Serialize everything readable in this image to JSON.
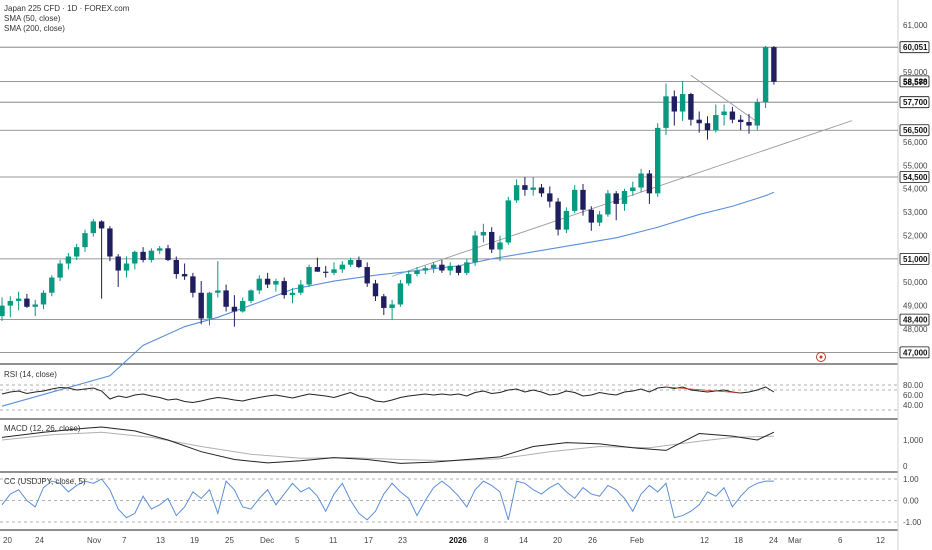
{
  "header": {
    "title": "Japan 225 CFD · 1D · FOREX.com",
    "sma50": "SMA (50, close)",
    "sma200": "SMA (200, close)"
  },
  "panels": {
    "rsi_label": "RSI (14, close)",
    "macd_label": "MACD (12, 26, close)",
    "cc_label": "CC (USDJPY, close, 5)"
  },
  "colors": {
    "up": "#089981",
    "down": "#1f1e5e",
    "sma": "#5b8fd9",
    "trend": "#9a9a9a",
    "level": "#777777",
    "cc": "#5b8fd9",
    "macd_signal": "#b0b0b0"
  },
  "chart_data": [
    {
      "type": "candlestick",
      "price_ticks": [
        61000,
        60000,
        59000,
        58000,
        57000,
        56000,
        55000,
        54000,
        53000,
        52000,
        51000,
        50000,
        49000,
        48000
      ],
      "price_tick_labels": [
        "61,000",
        "",
        "59,000",
        "",
        "",
        "56,000",
        "55,000",
        "54,000",
        "53,000",
        "52,000",
        "",
        "50,000",
        "49,000",
        "48,000"
      ],
      "level_tags": [
        {
          "label": "60,051",
          "value": 60051,
          "style": "dark"
        },
        {
          "label": "58,588",
          "value": 58588,
          "style": "dark"
        },
        {
          "label": "58,570",
          "value": 58570,
          "style": "plain"
        },
        {
          "label": "57,700",
          "value": 57700,
          "style": "dark"
        },
        {
          "label": "56,500",
          "value": 56500,
          "style": "dark"
        },
        {
          "label": "54,500",
          "value": 54500,
          "style": "dark"
        },
        {
          "label": "51,000",
          "value": 51000,
          "style": "dark"
        },
        {
          "label": "48,400",
          "value": 48400,
          "style": "dark"
        },
        {
          "label": "47,000",
          "value": 47000,
          "style": "dark"
        }
      ],
      "horizontal_levels": [
        60051,
        58588,
        57700,
        56500,
        54500,
        51000,
        48400,
        47000
      ],
      "x_axis_labels": [
        "20",
        "24",
        "Nov",
        "7",
        "13",
        "19",
        "25",
        "Dec",
        "5",
        "11",
        "17",
        "23",
        "2026",
        "8",
        "14",
        "20",
        "26",
        "Feb",
        "12",
        "18",
        "24",
        "Mar",
        "6",
        "12"
      ],
      "candles": [
        {
          "o": 48550,
          "h": 49350,
          "l": 48350,
          "c": 49000
        },
        {
          "o": 49000,
          "h": 49400,
          "l": 48500,
          "c": 49200
        },
        {
          "o": 49200,
          "h": 49600,
          "l": 48800,
          "c": 49300
        },
        {
          "o": 49300,
          "h": 49500,
          "l": 48900,
          "c": 48950
        },
        {
          "o": 48950,
          "h": 49250,
          "l": 48550,
          "c": 49050
        },
        {
          "o": 49050,
          "h": 49650,
          "l": 48850,
          "c": 49550
        },
        {
          "o": 49550,
          "h": 50300,
          "l": 49400,
          "c": 50200
        },
        {
          "o": 50200,
          "h": 50950,
          "l": 50050,
          "c": 50800
        },
        {
          "o": 50800,
          "h": 51250,
          "l": 50550,
          "c": 51100
        },
        {
          "o": 51100,
          "h": 51650,
          "l": 50950,
          "c": 51500
        },
        {
          "o": 51500,
          "h": 52250,
          "l": 51300,
          "c": 52100
        },
        {
          "o": 52100,
          "h": 52700,
          "l": 51950,
          "c": 52600
        },
        {
          "o": 52600,
          "h": 52650,
          "l": 49300,
          "c": 52300
        },
        {
          "o": 52300,
          "h": 52400,
          "l": 50900,
          "c": 51100
        },
        {
          "o": 51100,
          "h": 51200,
          "l": 49800,
          "c": 50500
        },
        {
          "o": 50500,
          "h": 51100,
          "l": 50200,
          "c": 50800
        },
        {
          "o": 50800,
          "h": 51350,
          "l": 50550,
          "c": 51300
        },
        {
          "o": 51300,
          "h": 51500,
          "l": 50850,
          "c": 50950
        },
        {
          "o": 50950,
          "h": 51450,
          "l": 50850,
          "c": 51350
        },
        {
          "o": 51350,
          "h": 51550,
          "l": 51200,
          "c": 51450
        },
        {
          "o": 51450,
          "h": 51600,
          "l": 50900,
          "c": 50950
        },
        {
          "o": 50950,
          "h": 51100,
          "l": 50150,
          "c": 50350
        },
        {
          "o": 50350,
          "h": 50800,
          "l": 50100,
          "c": 50250
        },
        {
          "o": 50250,
          "h": 50400,
          "l": 49350,
          "c": 49550
        },
        {
          "o": 49550,
          "h": 50050,
          "l": 48200,
          "c": 48450
        },
        {
          "o": 48450,
          "h": 49600,
          "l": 48150,
          "c": 49550
        },
        {
          "o": 49550,
          "h": 50900,
          "l": 49350,
          "c": 49650
        },
        {
          "o": 49650,
          "h": 49900,
          "l": 48750,
          "c": 48950
        },
        {
          "o": 48950,
          "h": 49450,
          "l": 48100,
          "c": 48750
        },
        {
          "o": 48750,
          "h": 49350,
          "l": 48700,
          "c": 49200
        },
        {
          "o": 49200,
          "h": 49700,
          "l": 49100,
          "c": 49650
        },
        {
          "o": 49650,
          "h": 50300,
          "l": 49500,
          "c": 50150
        },
        {
          "o": 50150,
          "h": 50400,
          "l": 49750,
          "c": 49900
        },
        {
          "o": 49900,
          "h": 50150,
          "l": 49600,
          "c": 50050
        },
        {
          "o": 50050,
          "h": 50200,
          "l": 49300,
          "c": 49450
        },
        {
          "o": 49450,
          "h": 49750,
          "l": 49100,
          "c": 49550
        },
        {
          "o": 49550,
          "h": 50100,
          "l": 49450,
          "c": 49900
        },
        {
          "o": 49900,
          "h": 50750,
          "l": 49800,
          "c": 50650
        },
        {
          "o": 50650,
          "h": 51050,
          "l": 50450,
          "c": 50450
        },
        {
          "o": 50450,
          "h": 50700,
          "l": 50200,
          "c": 50400
        },
        {
          "o": 50400,
          "h": 50850,
          "l": 50300,
          "c": 50550
        },
        {
          "o": 50550,
          "h": 50900,
          "l": 50400,
          "c": 50750
        },
        {
          "o": 50750,
          "h": 51050,
          "l": 50650,
          "c": 50950
        },
        {
          "o": 50950,
          "h": 51100,
          "l": 50600,
          "c": 50650
        },
        {
          "o": 50650,
          "h": 50850,
          "l": 49800,
          "c": 49950
        },
        {
          "o": 49950,
          "h": 50100,
          "l": 49200,
          "c": 49400
        },
        {
          "o": 49400,
          "h": 49500,
          "l": 48600,
          "c": 48900
        },
        {
          "o": 48900,
          "h": 49250,
          "l": 48400,
          "c": 49050
        },
        {
          "o": 49050,
          "h": 50100,
          "l": 48950,
          "c": 49950
        },
        {
          "o": 49950,
          "h": 50500,
          "l": 49850,
          "c": 50350
        },
        {
          "o": 50350,
          "h": 50650,
          "l": 50250,
          "c": 50500
        },
        {
          "o": 50500,
          "h": 50700,
          "l": 50350,
          "c": 50600
        },
        {
          "o": 50600,
          "h": 50850,
          "l": 50400,
          "c": 50750
        },
        {
          "o": 50750,
          "h": 50950,
          "l": 50400,
          "c": 50500
        },
        {
          "o": 50500,
          "h": 50850,
          "l": 50300,
          "c": 50700
        },
        {
          "o": 50700,
          "h": 50750,
          "l": 50300,
          "c": 50400
        },
        {
          "o": 50400,
          "h": 51000,
          "l": 50300,
          "c": 50850
        },
        {
          "o": 50850,
          "h": 52200,
          "l": 50700,
          "c": 52000
        },
        {
          "o": 52000,
          "h": 52500,
          "l": 51700,
          "c": 52150
        },
        {
          "o": 52150,
          "h": 52350,
          "l": 51250,
          "c": 51400
        },
        {
          "o": 51400,
          "h": 52000,
          "l": 50900,
          "c": 51700
        },
        {
          "o": 51700,
          "h": 53650,
          "l": 51600,
          "c": 53500
        },
        {
          "o": 53500,
          "h": 54400,
          "l": 53400,
          "c": 54150
        },
        {
          "o": 54150,
          "h": 54500,
          "l": 53700,
          "c": 53950
        },
        {
          "o": 53950,
          "h": 54500,
          "l": 53700,
          "c": 54050
        },
        {
          "o": 54050,
          "h": 54200,
          "l": 53650,
          "c": 53800
        },
        {
          "o": 53800,
          "h": 54100,
          "l": 53200,
          "c": 53450
        },
        {
          "o": 53450,
          "h": 53600,
          "l": 52000,
          "c": 52250
        },
        {
          "o": 52250,
          "h": 53200,
          "l": 52100,
          "c": 53050
        },
        {
          "o": 53050,
          "h": 54150,
          "l": 52950,
          "c": 53950
        },
        {
          "o": 53950,
          "h": 54200,
          "l": 52850,
          "c": 53100
        },
        {
          "o": 53100,
          "h": 53250,
          "l": 52200,
          "c": 52550
        },
        {
          "o": 52550,
          "h": 53050,
          "l": 52400,
          "c": 52900
        },
        {
          "o": 52900,
          "h": 53950,
          "l": 52800,
          "c": 53800
        },
        {
          "o": 53800,
          "h": 53900,
          "l": 52650,
          "c": 53350
        },
        {
          "o": 53350,
          "h": 54000,
          "l": 53050,
          "c": 53900
        },
        {
          "o": 53900,
          "h": 54300,
          "l": 53700,
          "c": 54050
        },
        {
          "o": 54050,
          "h": 54850,
          "l": 53850,
          "c": 54650
        },
        {
          "o": 54650,
          "h": 54800,
          "l": 53350,
          "c": 53800
        },
        {
          "o": 53800,
          "h": 56800,
          "l": 53650,
          "c": 56600
        },
        {
          "o": 56600,
          "h": 58500,
          "l": 56300,
          "c": 57950
        },
        {
          "o": 57950,
          "h": 58200,
          "l": 56700,
          "c": 57300
        },
        {
          "o": 57300,
          "h": 58600,
          "l": 56900,
          "c": 58050
        },
        {
          "o": 58050,
          "h": 58100,
          "l": 56700,
          "c": 56950
        },
        {
          "o": 56950,
          "h": 57300,
          "l": 56400,
          "c": 56800
        },
        {
          "o": 56800,
          "h": 57100,
          "l": 56100,
          "c": 56500
        },
        {
          "o": 56500,
          "h": 57600,
          "l": 56400,
          "c": 57150
        },
        {
          "o": 57150,
          "h": 57600,
          "l": 56700,
          "c": 57300
        },
        {
          "o": 57300,
          "h": 57500,
          "l": 56800,
          "c": 56950
        },
        {
          "o": 56950,
          "h": 57150,
          "l": 56500,
          "c": 56850
        },
        {
          "o": 56850,
          "h": 57200,
          "l": 56350,
          "c": 56700
        },
        {
          "o": 56700,
          "h": 57850,
          "l": 56500,
          "c": 57700
        },
        {
          "o": 57700,
          "h": 60100,
          "l": 57450,
          "c": 60050
        },
        {
          "o": 60051,
          "h": 60100,
          "l": 58450,
          "c": 58570
        }
      ],
      "sma50": [
        [
          0,
          44700
        ],
        [
          13,
          46000
        ],
        [
          17,
          47300
        ],
        [
          22,
          48100
        ],
        [
          26,
          48500
        ],
        [
          31,
          49150
        ],
        [
          35,
          49700
        ],
        [
          40,
          50050
        ],
        [
          45,
          50300
        ],
        [
          50,
          50500
        ],
        [
          55,
          50700
        ],
        [
          59,
          51000
        ],
        [
          64,
          51300
        ],
        [
          69,
          51600
        ],
        [
          74,
          51900
        ],
        [
          79,
          52350
        ],
        [
          84,
          52900
        ],
        [
          88,
          53250
        ],
        [
          92,
          53700
        ],
        [
          93,
          53850
        ]
      ],
      "trendlines": [
        [
          [
            47,
            50250
          ],
          [
            97,
            55200
          ]
        ],
        [
          [
            83,
            58850
          ],
          [
            91,
            56850
          ]
        ]
      ]
    },
    {
      "type": "line",
      "name": "RSI",
      "y_ticks": [
        80,
        60,
        40
      ],
      "y_tick_labels": [
        "80.00",
        "60.00",
        "40.00"
      ],
      "values": [
        62,
        66,
        68,
        63,
        66,
        68,
        72,
        75,
        74,
        70,
        72,
        74,
        68,
        52,
        58,
        55,
        60,
        62,
        58,
        55,
        50,
        52,
        47,
        45,
        48,
        52,
        55,
        53,
        50,
        48,
        52,
        55,
        58,
        60,
        57,
        54,
        58,
        62,
        60,
        58,
        55,
        60,
        65,
        58,
        55,
        48,
        46,
        50,
        55,
        58,
        60,
        62,
        60,
        62,
        60,
        62,
        58,
        65,
        68,
        63,
        65,
        70,
        72,
        66,
        70,
        66,
        60,
        62,
        68,
        65,
        58,
        60,
        65,
        62,
        60,
        66,
        68,
        72,
        66,
        74,
        76,
        73,
        76,
        70,
        68,
        66,
        68,
        70,
        66,
        64,
        66,
        70,
        76,
        66
      ]
    },
    {
      "type": "line",
      "name": "MACD",
      "y_ticks": [
        1000,
        0
      ],
      "y_tick_labels": [
        "1,000",
        "0"
      ],
      "macd": [
        [
          0,
          1100
        ],
        [
          5,
          1300
        ],
        [
          10,
          1450
        ],
        [
          12,
          1500
        ],
        [
          16,
          1350
        ],
        [
          20,
          1000
        ],
        [
          24,
          550
        ],
        [
          28,
          250
        ],
        [
          32,
          120
        ],
        [
          36,
          200
        ],
        [
          40,
          320
        ],
        [
          44,
          250
        ],
        [
          48,
          100
        ],
        [
          52,
          150
        ],
        [
          56,
          250
        ],
        [
          60,
          350
        ],
        [
          64,
          750
        ],
        [
          68,
          900
        ],
        [
          72,
          850
        ],
        [
          76,
          700
        ],
        [
          80,
          600
        ],
        [
          84,
          1250
        ],
        [
          88,
          1150
        ],
        [
          91,
          1000
        ],
        [
          93,
          1300
        ]
      ],
      "signal": [
        [
          0,
          1000
        ],
        [
          6,
          1200
        ],
        [
          12,
          1300
        ],
        [
          18,
          1100
        ],
        [
          24,
          750
        ],
        [
          30,
          450
        ],
        [
          36,
          300
        ],
        [
          42,
          320
        ],
        [
          48,
          250
        ],
        [
          54,
          200
        ],
        [
          60,
          280
        ],
        [
          66,
          550
        ],
        [
          72,
          750
        ],
        [
          78,
          700
        ],
        [
          84,
          950
        ],
        [
          88,
          1100
        ],
        [
          93,
          1150
        ]
      ]
    },
    {
      "type": "line",
      "name": "CC",
      "y_ticks": [
        1.0,
        0.0,
        -1.0
      ],
      "y_tick_labels": [
        "1.00",
        "0.00",
        "-1.00"
      ],
      "values": [
        -0.2,
        0.3,
        0.5,
        0.0,
        -0.3,
        0.6,
        0.9,
        0.8,
        0.4,
        0.7,
        0.9,
        0.8,
        1.0,
        0.5,
        -0.4,
        -0.8,
        -0.6,
        0.2,
        -0.4,
        -0.2,
        0.1,
        -0.7,
        -0.3,
        0.4,
        0.1,
        0.5,
        -0.6,
        0.9,
        0.5,
        -0.3,
        -0.4,
        0.1,
        0.5,
        -0.2,
        0.3,
        0.8,
        0.4,
        0.6,
        0.2,
        -0.5,
        0.3,
        0.8,
        0.0,
        -0.6,
        -0.9,
        -0.5,
        0.3,
        0.8,
        0.4,
        0.1,
        -0.7,
        0.0,
        0.6,
        0.9,
        0.6,
        0.2,
        -0.3,
        0.5,
        0.9,
        0.7,
        0.4,
        -0.9,
        0.9,
        0.8,
        0.5,
        0.3,
        0.6,
        0.8,
        0.4,
        0.1,
        0.6,
        0.3,
        0.2,
        0.7,
        0.5,
        0.1,
        -0.5,
        0.3,
        0.7,
        0.4,
        0.8,
        -0.8,
        -0.7,
        -0.5,
        -0.2,
        0.4,
        0.2,
        0.6,
        -0.3,
        0.2,
        0.6,
        0.8,
        0.9,
        0.9
      ]
    }
  ]
}
